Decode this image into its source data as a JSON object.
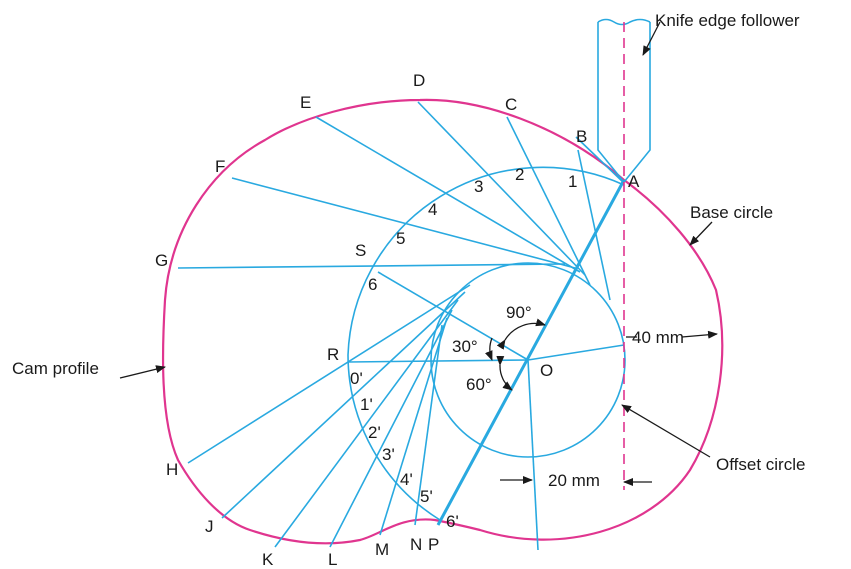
{
  "labels": {
    "follower": "Knife edge follower",
    "base_circle": "Base circle",
    "cam_profile": "Cam profile",
    "offset_circle": "Offset circle",
    "dim_40": "40 mm",
    "dim_20": "20 mm",
    "angle_90": "90°",
    "angle_30": "30°",
    "angle_60": "60°"
  },
  "points": {
    "A": "A",
    "B": "B",
    "C": "C",
    "D": "D",
    "E": "E",
    "F": "F",
    "G": "G",
    "H": "H",
    "J": "J",
    "K": "K",
    "L": "L",
    "M": "M",
    "N": "N",
    "P": "P",
    "R": "R",
    "S": "S",
    "O": "O"
  },
  "divisions_rise": [
    "1",
    "2",
    "3",
    "4",
    "5",
    "6"
  ],
  "divisions_return": [
    "0'",
    "1'",
    "2'",
    "3'",
    "4'",
    "5'",
    "6'"
  ],
  "colors": {
    "construction": "#29a9e0",
    "profile": "#e0358f",
    "text": "#1a1a1a"
  }
}
